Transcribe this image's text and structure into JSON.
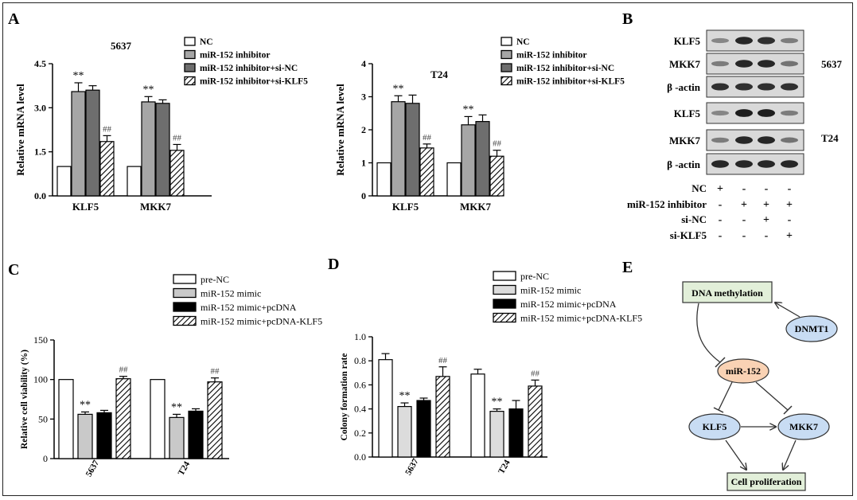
{
  "panels": {
    "A": "A",
    "B": "B",
    "C": "C",
    "D": "D",
    "E": "E"
  },
  "chart_data": [
    {
      "id": "A1",
      "type": "bar",
      "title": "5637",
      "ylabel": "Relative mRNA level",
      "ylim": [
        0,
        4.5
      ],
      "yticks": [
        0.0,
        1.5,
        3.0,
        4.5
      ],
      "ytick_labels": [
        "0.0",
        "1.5",
        "3.0",
        "4.5"
      ],
      "categories": [
        "KLF5",
        "MKK7"
      ],
      "series": [
        {
          "name": "NC",
          "values": [
            1.0,
            1.0
          ],
          "errors": [
            0,
            0
          ],
          "annot": [
            "",
            ""
          ]
        },
        {
          "name": "miR-152 inhibitor",
          "values": [
            3.55,
            3.2
          ],
          "errors": [
            0.3,
            0.18
          ],
          "annot": [
            "**",
            "**"
          ]
        },
        {
          "name": "miR-152 inhibitor+si-NC",
          "values": [
            3.6,
            3.15
          ],
          "errors": [
            0.15,
            0.12
          ],
          "annot": [
            "",
            ""
          ]
        },
        {
          "name": "miR-152 inhibitor+si-KLF5",
          "values": [
            1.85,
            1.55
          ],
          "errors": [
            0.2,
            0.2
          ],
          "annot": [
            "##",
            "##"
          ]
        }
      ],
      "legend": "top-right"
    },
    {
      "id": "A2",
      "type": "bar",
      "title": "T24",
      "ylabel": "Relative mRNA level",
      "ylim": [
        0,
        4
      ],
      "yticks": [
        0,
        1,
        2,
        3,
        4
      ],
      "ytick_labels": [
        "0",
        "1",
        "2",
        "3",
        "4"
      ],
      "categories": [
        "KLF5",
        "MKK7"
      ],
      "series": [
        {
          "name": "NC",
          "values": [
            1.0,
            1.0
          ],
          "errors": [
            0,
            0
          ],
          "annot": [
            "",
            ""
          ]
        },
        {
          "name": "miR-152 inhibitor",
          "values": [
            2.85,
            2.15
          ],
          "errors": [
            0.18,
            0.25
          ],
          "annot": [
            "**",
            "**"
          ]
        },
        {
          "name": "miR-152 inhibitor+si-NC",
          "values": [
            2.8,
            2.25
          ],
          "errors": [
            0.25,
            0.2
          ],
          "annot": [
            "",
            ""
          ]
        },
        {
          "name": "miR-152 inhibitor+si-KLF5",
          "values": [
            1.45,
            1.2
          ],
          "errors": [
            0.12,
            0.18
          ],
          "annot": [
            "##",
            "##"
          ]
        }
      ],
      "legend": "top-right"
    },
    {
      "id": "C",
      "type": "bar",
      "title": "",
      "ylabel": "Relative cell viability (%)",
      "ylim": [
        0,
        150
      ],
      "yticks": [
        0,
        50,
        100,
        150
      ],
      "ytick_labels": [
        "0",
        "50",
        "100",
        "150"
      ],
      "categories": [
        "5637",
        "T24"
      ],
      "series": [
        {
          "name": "pre-NC",
          "values": [
            100,
            100
          ],
          "errors": [
            0,
            0
          ],
          "annot": [
            "",
            ""
          ]
        },
        {
          "name": "miR-152 mimic",
          "values": [
            56,
            52
          ],
          "errors": [
            3,
            4
          ],
          "annot": [
            "**",
            "**"
          ]
        },
        {
          "name": "miR-152 mimic+pcDNA",
          "values": [
            58,
            60
          ],
          "errors": [
            3,
            3
          ],
          "annot": [
            "",
            ""
          ]
        },
        {
          "name": "miR-152 mimic+pcDNA-KLF5",
          "values": [
            101,
            97
          ],
          "errors": [
            3,
            5
          ],
          "annot": [
            "##",
            "##"
          ]
        }
      ],
      "legend": "top-right"
    },
    {
      "id": "D",
      "type": "bar",
      "title": "",
      "ylabel": "Colony formation rate",
      "ylim": [
        0,
        1.0
      ],
      "yticks": [
        0.0,
        0.2,
        0.4,
        0.6,
        0.8,
        1.0
      ],
      "ytick_labels": [
        "0.0",
        "0.2",
        "0.4",
        "0.6",
        "0.8",
        "1.0"
      ],
      "categories": [
        "5637",
        "T24"
      ],
      "series": [
        {
          "name": "pre-NC",
          "values": [
            0.81,
            0.69
          ],
          "errors": [
            0.05,
            0.04
          ],
          "annot": [
            "",
            ""
          ]
        },
        {
          "name": "miR-152 mimic",
          "values": [
            0.42,
            0.38
          ],
          "errors": [
            0.03,
            0.02
          ],
          "annot": [
            "**",
            "**"
          ]
        },
        {
          "name": "miR-152 mimic+pcDNA",
          "values": [
            0.47,
            0.4
          ],
          "errors": [
            0.02,
            0.07
          ],
          "annot": [
            "",
            ""
          ]
        },
        {
          "name": "miR-152 mimic+pcDNA-KLF5",
          "values": [
            0.67,
            0.59
          ],
          "errors": [
            0.08,
            0.05
          ],
          "annot": [
            "##",
            "##"
          ]
        }
      ],
      "legend": "top-right"
    }
  ],
  "western": {
    "rows": [
      {
        "label": "KLF5",
        "group": "5637"
      },
      {
        "label": "MKK7",
        "group": "5637"
      },
      {
        "label": "β -actin",
        "group": "5637"
      },
      {
        "label": "KLF5",
        "group": "T24"
      },
      {
        "label": "MKK7",
        "group": "T24"
      },
      {
        "label": "β -actin",
        "group": "T24"
      }
    ],
    "cell_lines": [
      "5637",
      "T24"
    ],
    "band_intensity": [
      [
        0.35,
        0.85,
        0.8,
        0.4
      ],
      [
        0.4,
        0.85,
        0.85,
        0.45
      ],
      [
        0.8,
        0.8,
        0.8,
        0.8
      ],
      [
        0.35,
        0.9,
        0.9,
        0.4
      ],
      [
        0.4,
        0.85,
        0.85,
        0.45
      ],
      [
        0.85,
        0.85,
        0.85,
        0.85
      ]
    ],
    "conditions": [
      {
        "label": "NC",
        "marks": [
          "+",
          "-",
          "-",
          "-"
        ]
      },
      {
        "label": "miR-152 inhibitor",
        "marks": [
          "-",
          "+",
          "+",
          "+"
        ]
      },
      {
        "label": "si-NC",
        "marks": [
          "-",
          "-",
          "+",
          "-"
        ]
      },
      {
        "label": "si-KLF5",
        "marks": [
          "-",
          "-",
          "-",
          "+"
        ]
      }
    ]
  },
  "pathway": {
    "nodes": {
      "dna": "DNA methylation",
      "dnmt1": "DNMT1",
      "mir": "miR-152",
      "klf5": "KLF5",
      "mkk7": "MKK7",
      "prolif": "Cell proliferation"
    },
    "colors": {
      "box": "#e2efd9",
      "ellipse_blue": "#c8dcf3",
      "ellipse_orange": "#f9d2b4"
    }
  }
}
